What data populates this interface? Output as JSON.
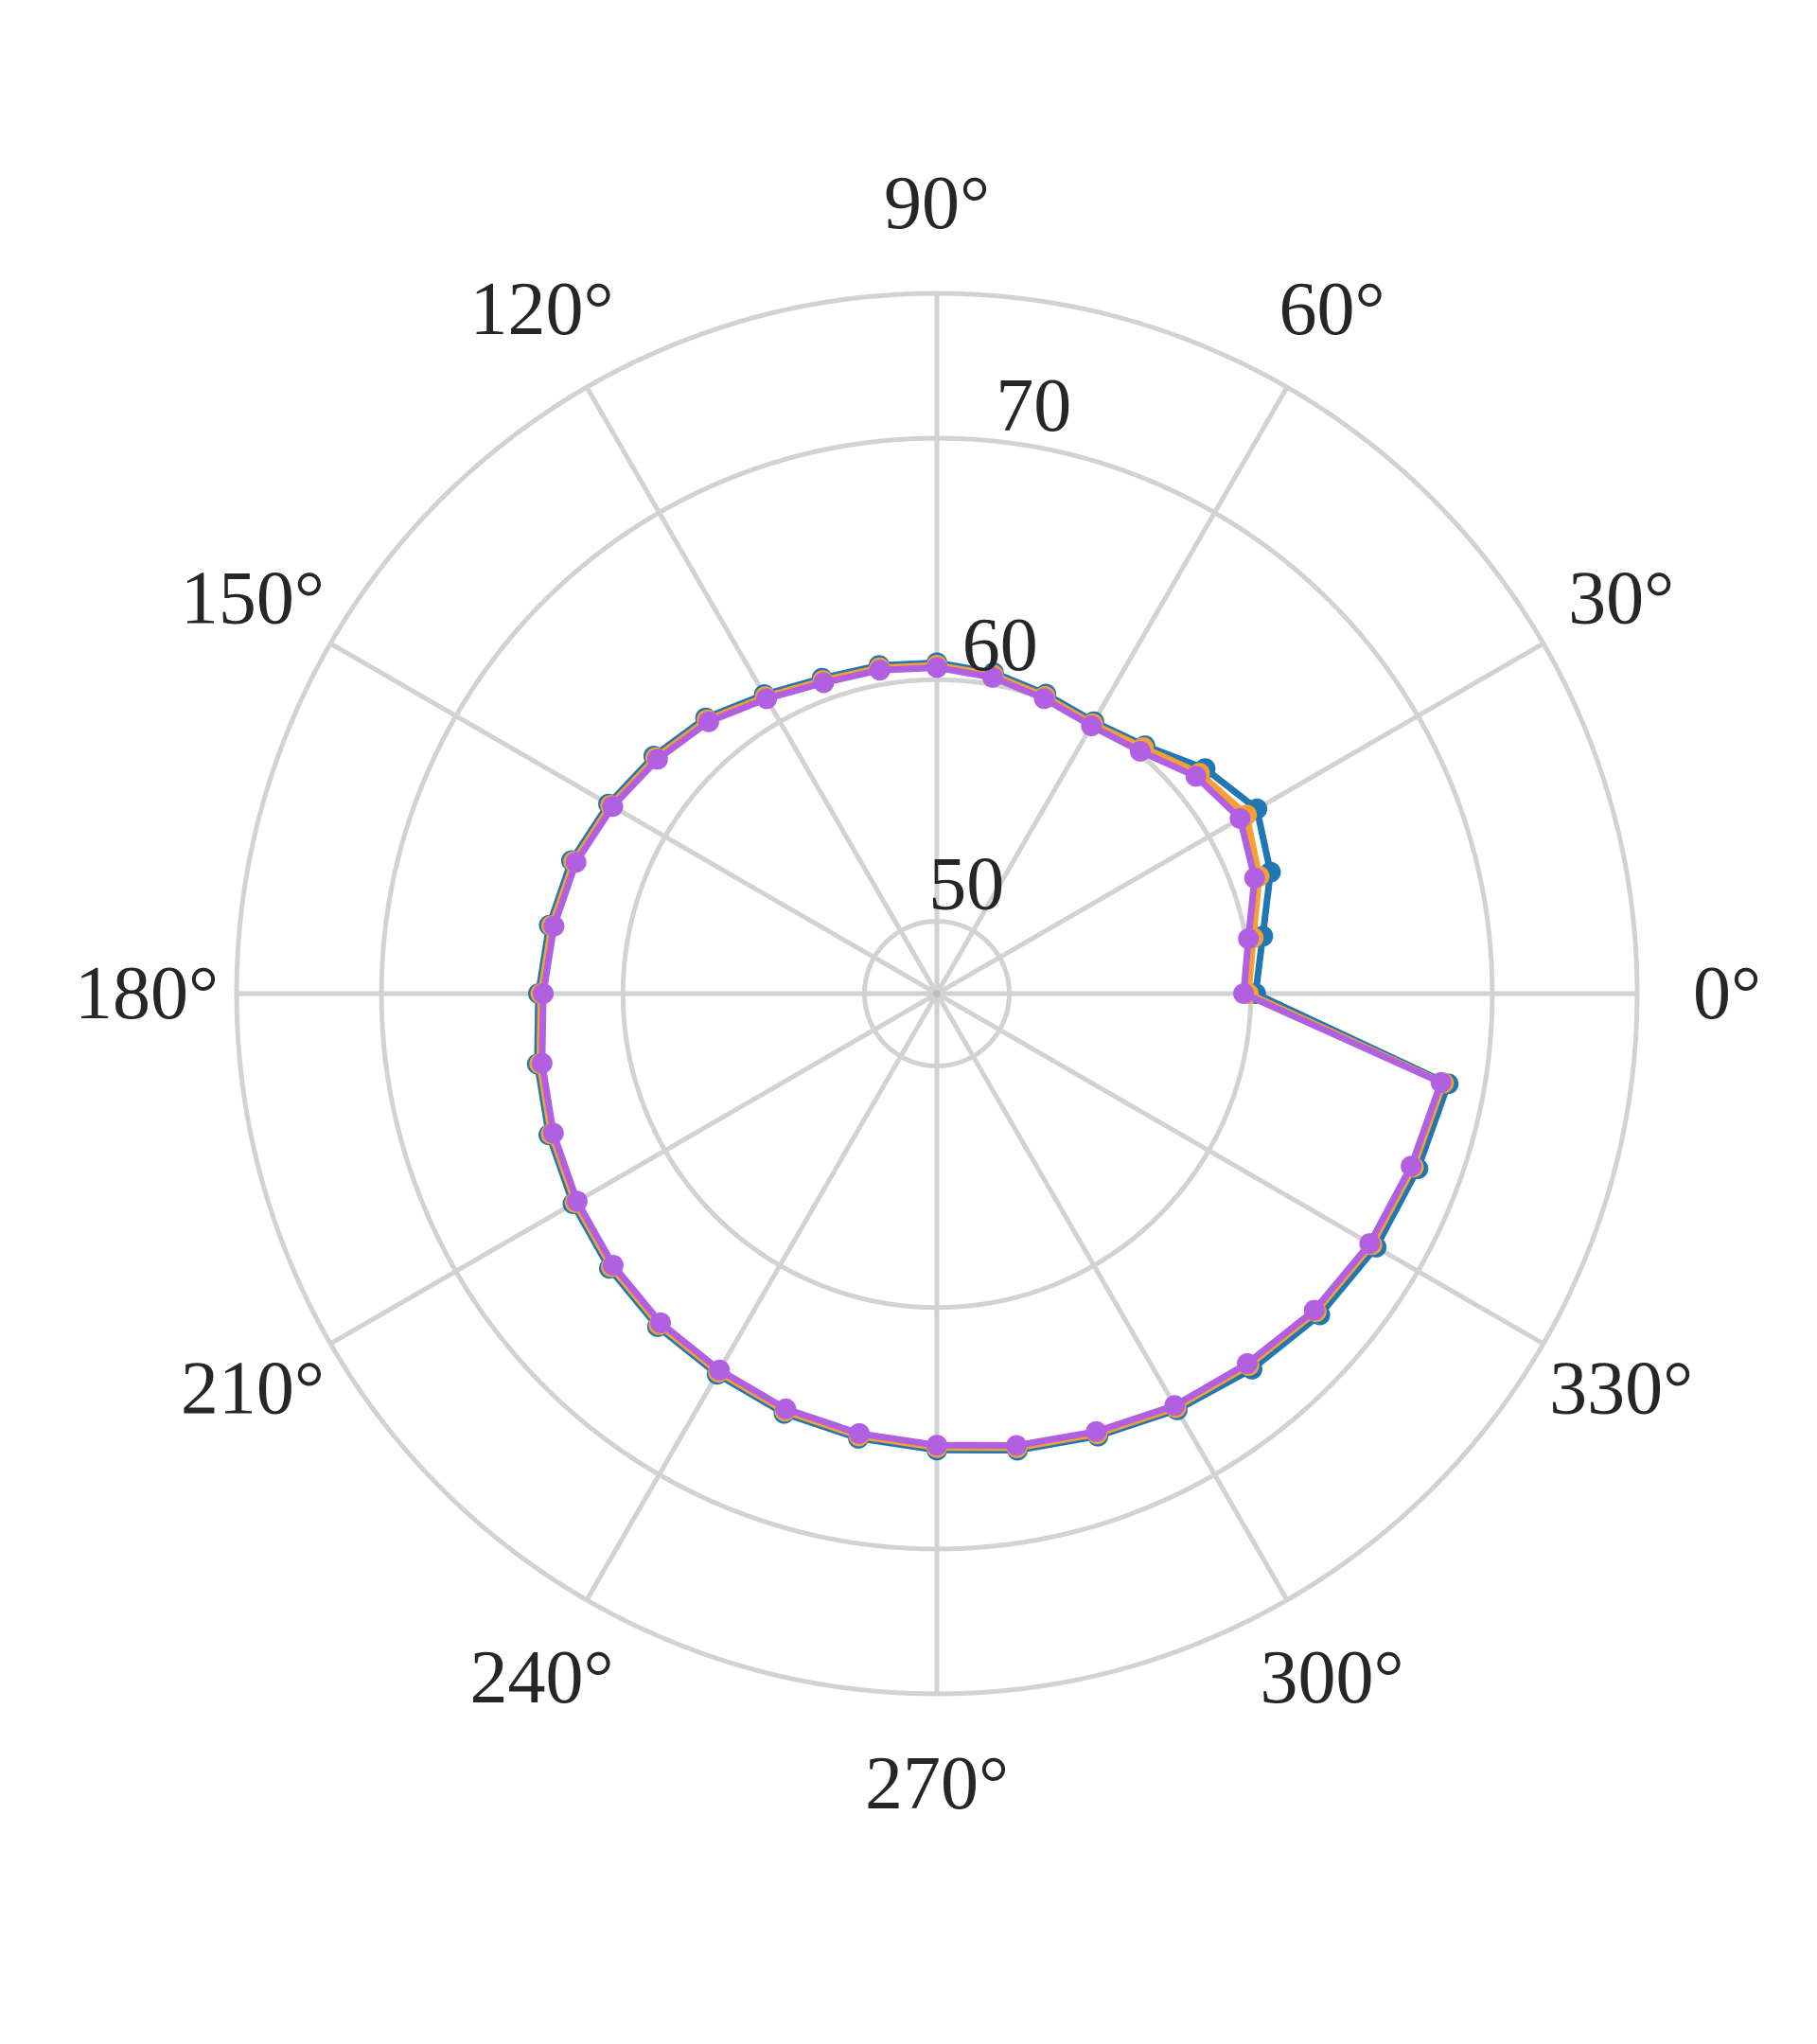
{
  "chart_data": {
    "type": "polar-line",
    "angle_unit": "degrees",
    "angle_ticks": [
      0,
      30,
      60,
      90,
      120,
      150,
      180,
      210,
      240,
      270,
      300,
      330
    ],
    "angle_tick_labels": [
      "0°",
      "30°",
      "60°",
      "90°",
      "120°",
      "150°",
      "180°",
      "210°",
      "240°",
      "270°",
      "300°",
      "330°"
    ],
    "radial_ticks": [
      50,
      60,
      70
    ],
    "radial_tick_labels": [
      "50",
      "60",
      "70"
    ],
    "rlim": [
      47,
      76
    ],
    "grid": true,
    "series": [
      {
        "color": "#1f77b4",
        "points": [
          [
            0,
            60.2
          ],
          [
            10,
            60.7
          ],
          [
            20,
            61.7
          ],
          [
            30,
            62.3
          ],
          [
            40,
            61.5
          ],
          [
            50,
            60.4
          ],
          [
            60,
            60.0
          ],
          [
            70,
            60.2
          ],
          [
            80,
            60.5
          ],
          [
            90,
            60.7
          ],
          [
            100,
            60.8
          ],
          [
            110,
            60.9
          ],
          [
            120,
            61.3
          ],
          [
            130,
            61.9
          ],
          [
            140,
            62.3
          ],
          [
            150,
            62.7
          ],
          [
            160,
            63.1
          ],
          [
            170,
            63.3
          ],
          [
            180,
            63.5
          ],
          [
            190,
            63.8
          ],
          [
            200,
            64.1
          ],
          [
            210,
            64.4
          ],
          [
            220,
            64.7
          ],
          [
            230,
            65.0
          ],
          [
            240,
            65.2
          ],
          [
            250,
            65.5
          ],
          [
            260,
            65.7
          ],
          [
            270,
            65.9
          ],
          [
            280,
            66.2
          ],
          [
            290,
            66.5
          ],
          [
            300,
            66.9
          ],
          [
            310,
            67.3
          ],
          [
            320,
            67.7
          ],
          [
            330,
            68.0
          ],
          [
            340,
            68.2
          ],
          [
            350,
            68.5
          ]
        ]
      },
      {
        "color": "#f5a030",
        "points": [
          [
            0,
            59.9
          ],
          [
            10,
            60.3
          ],
          [
            20,
            61.2
          ],
          [
            30,
            61.8
          ],
          [
            40,
            61.2
          ],
          [
            50,
            60.3
          ],
          [
            60,
            59.9
          ],
          [
            70,
            60.1
          ],
          [
            80,
            60.4
          ],
          [
            90,
            60.6
          ],
          [
            100,
            60.7
          ],
          [
            110,
            60.8
          ],
          [
            120,
            61.2
          ],
          [
            130,
            61.8
          ],
          [
            140,
            62.2
          ],
          [
            150,
            62.6
          ],
          [
            160,
            63.0
          ],
          [
            170,
            63.2
          ],
          [
            180,
            63.4
          ],
          [
            190,
            63.7
          ],
          [
            200,
            64.0
          ],
          [
            210,
            64.3
          ],
          [
            220,
            64.6
          ],
          [
            230,
            64.9
          ],
          [
            240,
            65.1
          ],
          [
            250,
            65.4
          ],
          [
            260,
            65.6
          ],
          [
            270,
            65.8
          ],
          [
            280,
            66.1
          ],
          [
            290,
            66.4
          ],
          [
            300,
            66.8
          ],
          [
            310,
            67.1
          ],
          [
            320,
            67.5
          ],
          [
            330,
            67.8
          ],
          [
            340,
            68.0
          ],
          [
            350,
            68.3
          ]
        ]
      },
      {
        "color": "#b060e0",
        "points": [
          [
            0,
            59.7
          ],
          [
            10,
            60.1
          ],
          [
            20,
            61.0
          ],
          [
            30,
            61.5
          ],
          [
            40,
            61.0
          ],
          [
            50,
            60.1
          ],
          [
            60,
            59.8
          ],
          [
            70,
            60.0
          ],
          [
            80,
            60.3
          ],
          [
            90,
            60.5
          ],
          [
            100,
            60.6
          ],
          [
            110,
            60.7
          ],
          [
            120,
            61.1
          ],
          [
            130,
            61.7
          ],
          [
            140,
            62.1
          ],
          [
            150,
            62.5
          ],
          [
            160,
            62.9
          ],
          [
            170,
            63.1
          ],
          [
            180,
            63.3
          ],
          [
            190,
            63.6
          ],
          [
            200,
            63.9
          ],
          [
            210,
            64.2
          ],
          [
            220,
            64.5
          ],
          [
            230,
            64.8
          ],
          [
            240,
            65.0
          ],
          [
            250,
            65.3
          ],
          [
            260,
            65.5
          ],
          [
            270,
            65.7
          ],
          [
            280,
            66.0
          ],
          [
            290,
            66.3
          ],
          [
            300,
            66.7
          ],
          [
            310,
            67.0
          ],
          [
            320,
            67.4
          ],
          [
            330,
            67.7
          ],
          [
            340,
            67.9
          ],
          [
            350,
            68.2
          ]
        ]
      }
    ]
  }
}
